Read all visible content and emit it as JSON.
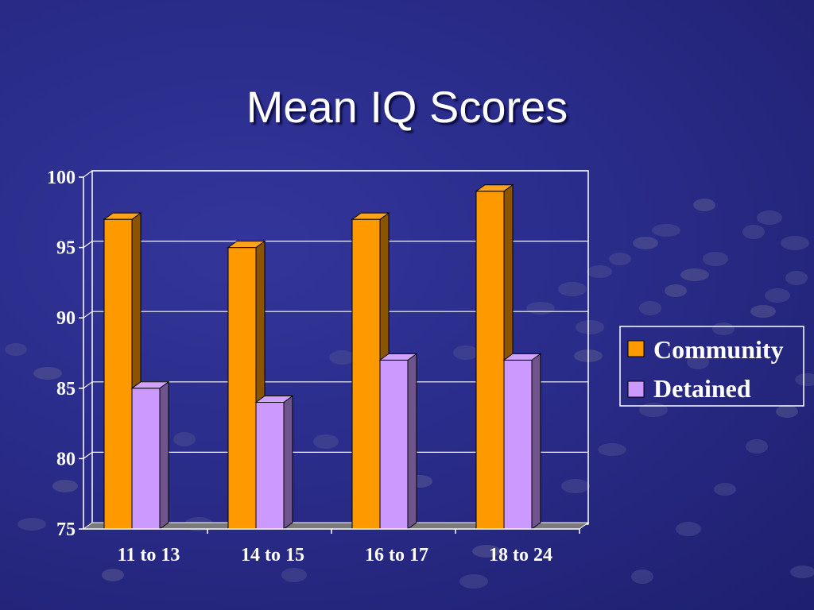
{
  "slide": {
    "title": "Mean IQ Scores"
  },
  "colors": {
    "background": "#2a2c8a",
    "community": "#ff9900",
    "detained": "#cc99ff"
  },
  "chart_data": {
    "type": "bar",
    "title": "Mean IQ Scores",
    "xlabel": "",
    "ylabel": "",
    "ylim": [
      75,
      100
    ],
    "yticks": [
      100,
      95,
      90,
      85,
      80,
      75
    ],
    "grid": true,
    "style": "3d-clustered-column",
    "legend_position": "right",
    "categories": [
      "11 to 13",
      "14 to 15",
      "16 to 17",
      "18 to 24"
    ],
    "series": [
      {
        "name": "Community",
        "color": "#ff9900",
        "values": [
          97,
          95,
          97,
          99
        ]
      },
      {
        "name": "Detained",
        "color": "#cc99ff",
        "values": [
          85,
          84,
          87,
          87
        ]
      }
    ]
  }
}
